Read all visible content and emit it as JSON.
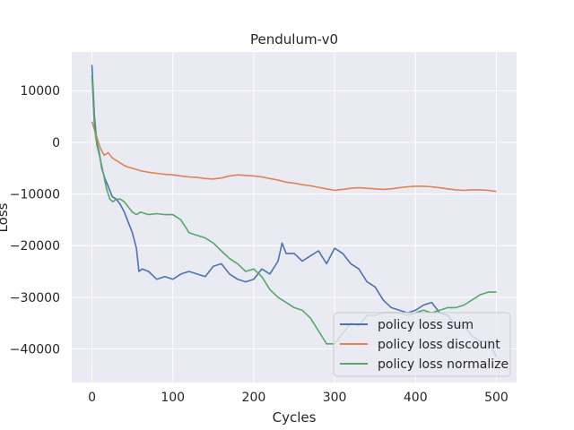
{
  "chart_data": {
    "type": "line",
    "title": "Pendulum-v0",
    "xlabel": "Cycles",
    "ylabel": "Loss",
    "xlim": [
      -25,
      525
    ],
    "ylim": [
      -46500,
      17500
    ],
    "xticks": [
      0,
      100,
      200,
      300,
      400,
      500
    ],
    "yticks": [
      10000,
      0,
      -10000,
      -20000,
      -30000,
      -40000
    ],
    "xtick_labels": [
      "0",
      "100",
      "200",
      "300",
      "400",
      "500"
    ],
    "ytick_labels": [
      "10000",
      "0",
      "−10000",
      "−20000",
      "−30000",
      "−40000"
    ],
    "grid": true,
    "legend_position": "lower-right",
    "background": "#eaeaf2",
    "series": [
      {
        "name": "policy loss sum",
        "color": "#4c72b0",
        "x": [
          0,
          3,
          6,
          9,
          12,
          16,
          20,
          25,
          30,
          35,
          40,
          45,
          50,
          55,
          58,
          62,
          70,
          80,
          90,
          100,
          110,
          120,
          130,
          140,
          150,
          160,
          170,
          180,
          190,
          200,
          210,
          220,
          230,
          235,
          240,
          250,
          260,
          270,
          280,
          290,
          300,
          310,
          320,
          330,
          340,
          350,
          360,
          370,
          380,
          390,
          400,
          410,
          420,
          430,
          440,
          450,
          460,
          470,
          480,
          490,
          500
        ],
        "y": [
          15000,
          5000,
          0,
          -2000,
          -5000,
          -7000,
          -8500,
          -10500,
          -11000,
          -12000,
          -13500,
          -15500,
          -17500,
          -20500,
          -25000,
          -24500,
          -25000,
          -26500,
          -26000,
          -26500,
          -25500,
          -25000,
          -25500,
          -26000,
          -24000,
          -23500,
          -25500,
          -26500,
          -27000,
          -26500,
          -24500,
          -25500,
          -23000,
          -19500,
          -21500,
          -21500,
          -23000,
          -22000,
          -21000,
          -23500,
          -20500,
          -21500,
          -23500,
          -24500,
          -27000,
          -28000,
          -30500,
          -32000,
          -32500,
          -33000,
          -32500,
          -31500,
          -31000,
          -33000,
          -33500,
          -35500,
          -35500,
          -37500,
          -38500,
          -38500,
          -41500
        ]
      },
      {
        "name": "policy loss discount",
        "color": "#dd8452",
        "x": [
          0,
          5,
          10,
          15,
          20,
          25,
          30,
          35,
          40,
          45,
          50,
          60,
          70,
          80,
          90,
          100,
          110,
          120,
          130,
          140,
          150,
          160,
          170,
          180,
          190,
          200,
          210,
          220,
          230,
          240,
          250,
          260,
          270,
          280,
          290,
          300,
          310,
          320,
          330,
          340,
          350,
          360,
          370,
          380,
          390,
          400,
          410,
          420,
          430,
          440,
          450,
          460,
          470,
          480,
          490,
          500
        ],
        "y": [
          4000,
          1500,
          -1000,
          -2500,
          -2000,
          -3000,
          -3500,
          -4000,
          -4500,
          -4800,
          -5000,
          -5500,
          -5800,
          -6000,
          -6200,
          -6300,
          -6500,
          -6700,
          -6800,
          -7000,
          -7100,
          -6900,
          -6500,
          -6300,
          -6400,
          -6500,
          -6700,
          -7000,
          -7300,
          -7700,
          -7900,
          -8200,
          -8400,
          -8700,
          -9000,
          -9300,
          -9100,
          -8900,
          -8800,
          -8900,
          -9000,
          -9100,
          -9000,
          -8800,
          -8600,
          -8500,
          -8500,
          -8600,
          -8800,
          -9000,
          -9200,
          -9300,
          -9200,
          -9200,
          -9300,
          -9500
        ]
      },
      {
        "name": "policy loss normalize",
        "color": "#55a868",
        "x": [
          0,
          3,
          6,
          10,
          14,
          18,
          22,
          26,
          30,
          35,
          40,
          45,
          50,
          55,
          60,
          70,
          80,
          90,
          100,
          110,
          120,
          130,
          140,
          150,
          160,
          170,
          180,
          190,
          200,
          210,
          220,
          230,
          240,
          250,
          260,
          270,
          280,
          290,
          300,
          310,
          320,
          330,
          340,
          350,
          360,
          370,
          380,
          390,
          400,
          410,
          420,
          430,
          440,
          450,
          460,
          470,
          480,
          490,
          500
        ],
        "y": [
          13000,
          3000,
          -500,
          -3000,
          -6000,
          -9000,
          -11000,
          -11500,
          -11000,
          -11000,
          -11500,
          -12500,
          -13500,
          -14000,
          -13500,
          -14000,
          -13800,
          -14000,
          -14000,
          -15000,
          -17500,
          -18000,
          -18500,
          -19500,
          -21000,
          -22500,
          -23500,
          -25000,
          -24500,
          -26000,
          -28500,
          -30000,
          -31000,
          -32000,
          -32500,
          -34000,
          -36500,
          -39000,
          -39000,
          -37000,
          -35000,
          -35500,
          -33500,
          -33500,
          -33000,
          -33000,
          -33000,
          -33500,
          -33000,
          -32500,
          -33000,
          -32500,
          -32000,
          -32000,
          -31500,
          -30500,
          -29500,
          -29000,
          -29000
        ]
      }
    ]
  }
}
